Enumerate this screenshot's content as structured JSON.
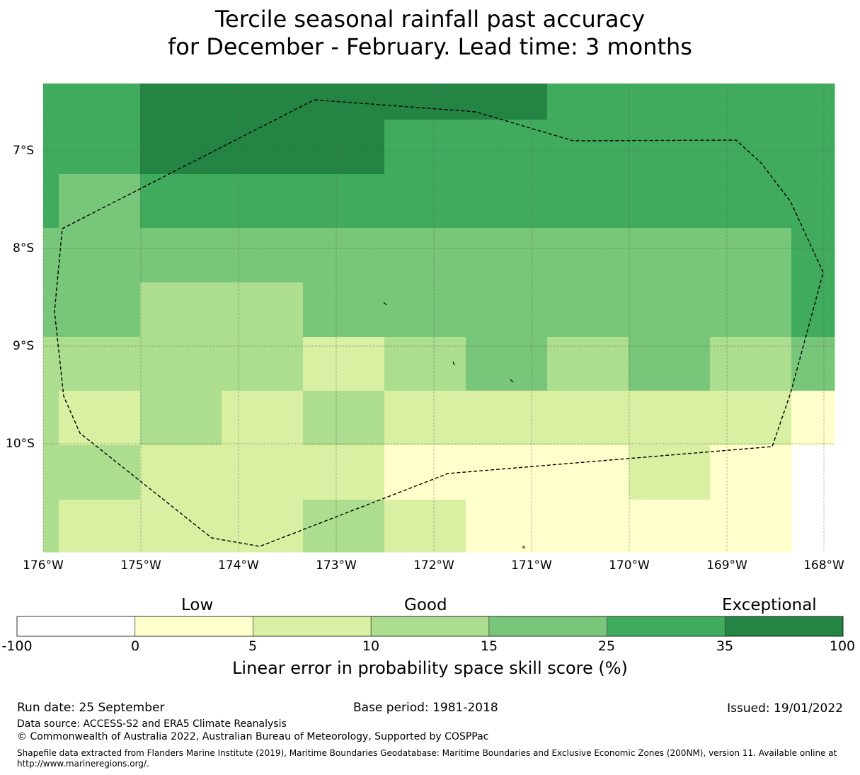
{
  "title": {
    "line1": "Tercile seasonal rainfall past accuracy",
    "line2": "for December - February. Lead time: 3 months"
  },
  "map": {
    "lon_ticks": [
      "176°W",
      "175°W",
      "174°W",
      "173°W",
      "172°W",
      "171°W",
      "170°W",
      "169°W",
      "168°W"
    ],
    "lat_ticks": [
      "7°S",
      "8°S",
      "9°S",
      "10°S"
    ],
    "colors": {
      "c0": "#ffffcc",
      "c1": "#d9f0a3",
      "c2": "#addd8e",
      "c3": "#78c679",
      "c4": "#41ab5d",
      "c5": "#238443"
    }
  },
  "legend": {
    "categories": [
      "Low",
      "Good",
      "Exceptional"
    ],
    "ticks": [
      "-100",
      "0",
      "5",
      "10",
      "15",
      "25",
      "35",
      "100"
    ],
    "label": "Linear error in probability space skill score (%)"
  },
  "footer": {
    "run_date": "Run date: 25 September",
    "base_period": "Base period: 1981-2018",
    "issued": "Issued: 19/01/2022",
    "data_source": "Data source: ACCESS-S2 and ERA5 Climate Reanalysis",
    "copyright": "© Commonwealth of Australia 2022, Australian Bureau of Meteorology, Supported by COSPPac",
    "shapefile": "Shapefile data extracted from Flanders Marine Institute (2019), Maritime Boundaries Geodatabase: Maritime Boundaries and Exclusive Economic Zones (200NM), version 11. Available online at http://www.marineregions.org/."
  }
}
